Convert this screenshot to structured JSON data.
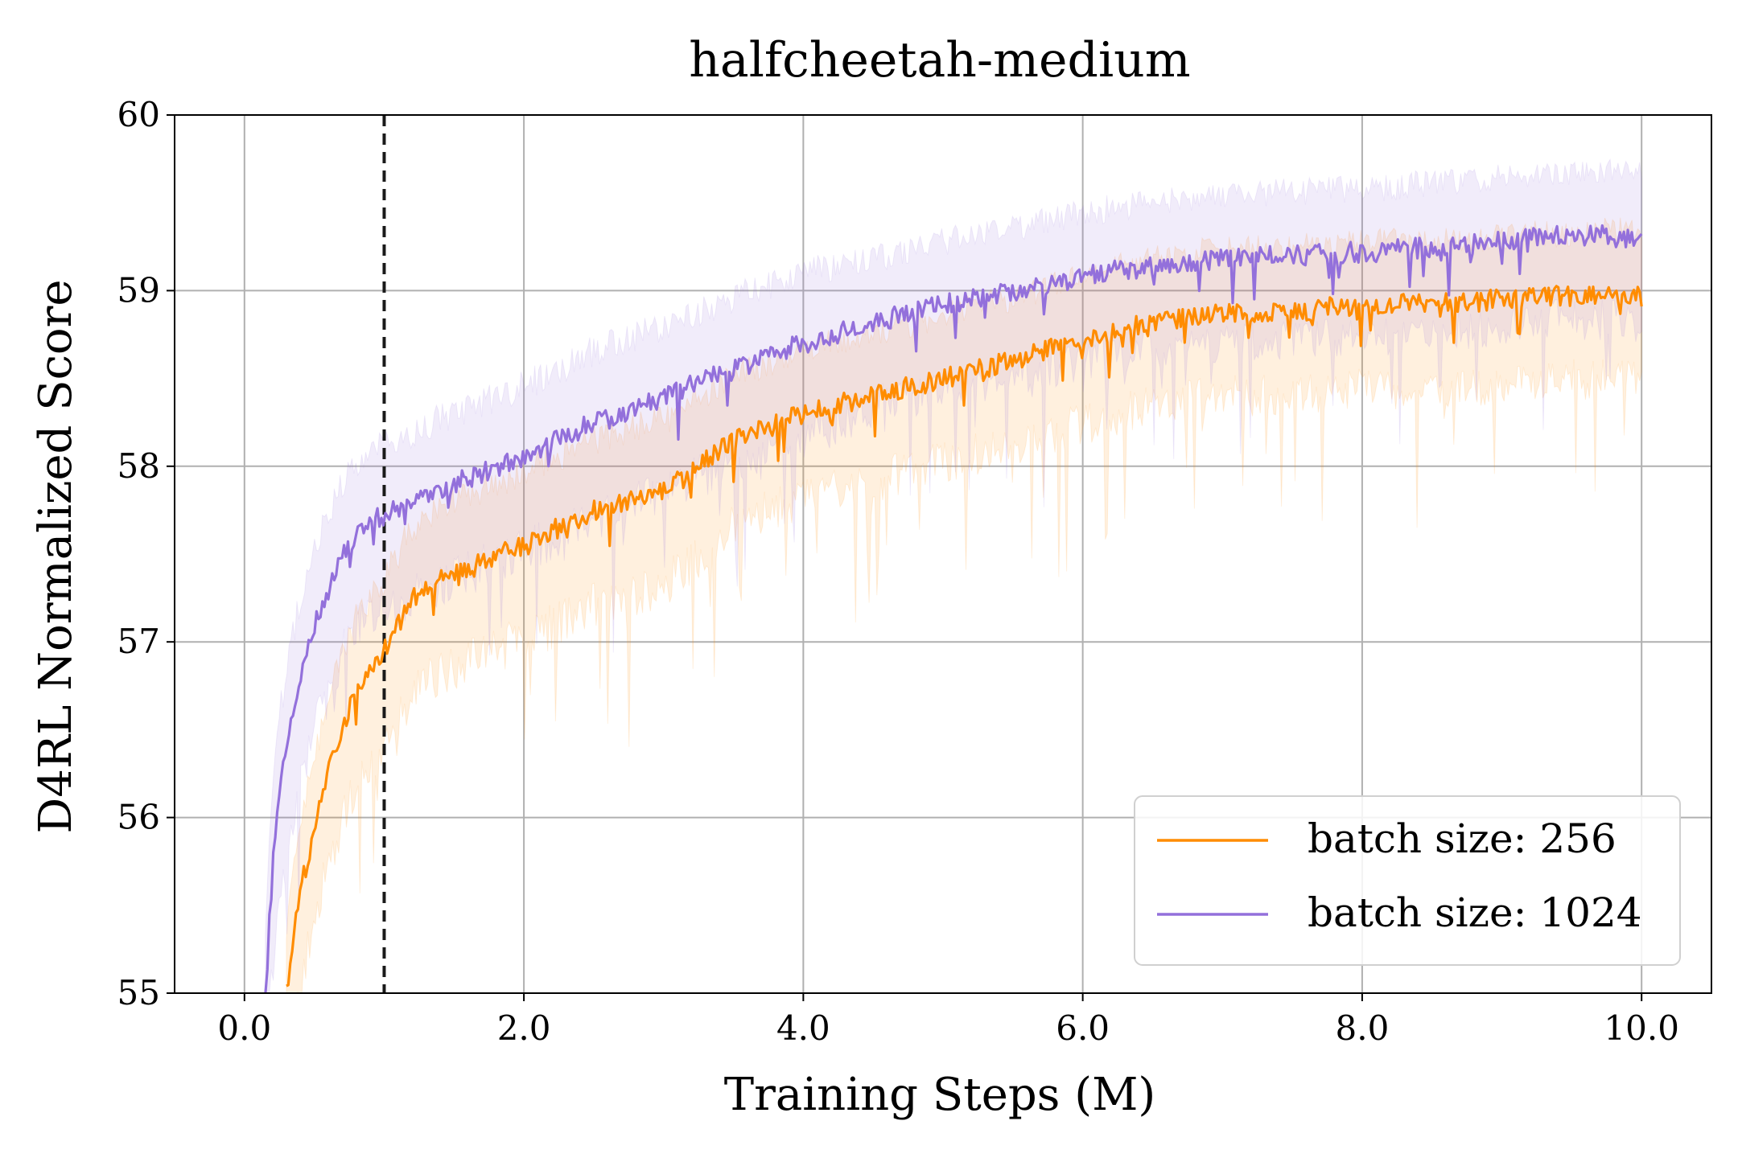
{
  "chart_data": {
    "type": "line",
    "title": "halfcheetah-medium",
    "xlabel": "Training Steps (M)",
    "ylabel": "D4RL Normalized Score",
    "xlim": [
      -0.5,
      10.5
    ],
    "ylim": [
      55,
      60
    ],
    "xticks": [
      0,
      2,
      4,
      6,
      8,
      10
    ],
    "xtick_labels": [
      "0.0",
      "2.0",
      "4.0",
      "6.0",
      "8.0",
      "10.0"
    ],
    "yticks": [
      55,
      56,
      57,
      58,
      59,
      60
    ],
    "ytick_labels": [
      "55",
      "56",
      "57",
      "58",
      "59",
      "60"
    ],
    "grid": true,
    "legend_position": "bottom-right",
    "vline": {
      "x": 1.0,
      "style": "dashed",
      "color": "#1a1a1a"
    },
    "series": [
      {
        "name": "batch size: 256",
        "color": "#ff8c00",
        "x": [
          0.3,
          0.4,
          0.5,
          0.6,
          0.7,
          0.8,
          0.9,
          1.0,
          1.2,
          1.5,
          2.0,
          2.5,
          3.0,
          3.5,
          4.0,
          4.5,
          5.0,
          5.5,
          6.0,
          6.5,
          7.0,
          7.5,
          8.0,
          8.5,
          9.0,
          9.5,
          10.0
        ],
        "y": [
          55.0,
          55.6,
          55.9,
          56.3,
          56.5,
          56.75,
          56.85,
          56.95,
          57.25,
          57.4,
          57.55,
          57.75,
          57.85,
          58.15,
          58.3,
          58.4,
          58.5,
          58.6,
          58.72,
          58.82,
          58.88,
          58.88,
          58.92,
          58.92,
          58.95,
          58.97,
          58.98
        ],
        "band_width": [
          0.4,
          0.45,
          0.45,
          0.45,
          0.45,
          0.45,
          0.45,
          0.45,
          0.45,
          0.45,
          0.45,
          0.45,
          0.45,
          0.4,
          0.4,
          0.4,
          0.4,
          0.4,
          0.4,
          0.4,
          0.4,
          0.4,
          0.4,
          0.4,
          0.4,
          0.4,
          0.4
        ]
      },
      {
        "name": "batch size: 1024",
        "color": "#9370db",
        "x": [
          0.15,
          0.2,
          0.25,
          0.3,
          0.4,
          0.5,
          0.6,
          0.7,
          0.8,
          0.9,
          1.0,
          1.5,
          2.0,
          2.5,
          3.0,
          3.5,
          4.0,
          4.5,
          5.0,
          5.5,
          6.0,
          6.5,
          7.0,
          7.5,
          8.0,
          8.5,
          9.0,
          9.5,
          10.0
        ],
        "y": [
          55.0,
          55.7,
          56.1,
          56.4,
          56.8,
          57.1,
          57.3,
          57.5,
          57.62,
          57.68,
          57.72,
          57.9,
          58.05,
          58.25,
          58.4,
          58.55,
          58.7,
          58.82,
          58.92,
          59.0,
          59.08,
          59.15,
          59.18,
          59.2,
          59.22,
          59.25,
          59.28,
          59.32,
          59.3
        ],
        "band_width": [
          0.45,
          0.5,
          0.5,
          0.5,
          0.5,
          0.5,
          0.5,
          0.45,
          0.45,
          0.45,
          0.45,
          0.45,
          0.45,
          0.45,
          0.45,
          0.45,
          0.45,
          0.4,
          0.4,
          0.4,
          0.4,
          0.4,
          0.4,
          0.4,
          0.4,
          0.4,
          0.4,
          0.4,
          0.4
        ]
      }
    ]
  }
}
